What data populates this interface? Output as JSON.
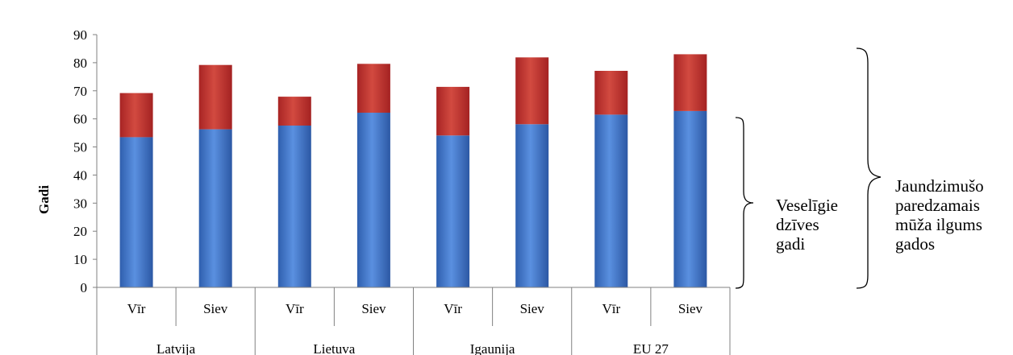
{
  "chart_data": {
    "type": "bar",
    "stacked": true,
    "title": "",
    "ylabel": "Gadi",
    "xlabel": "",
    "ylim": [
      0,
      90
    ],
    "yticks": [
      0,
      10,
      20,
      30,
      40,
      50,
      60,
      70,
      80,
      90
    ],
    "groups": [
      {
        "label": "Latvija",
        "categories": [
          "Vīr",
          "Siev"
        ]
      },
      {
        "label": "Lietuva",
        "categories": [
          "Vīr",
          "Siev"
        ]
      },
      {
        "label": "Igaunija",
        "categories": [
          "Vīr",
          "Siev"
        ]
      },
      {
        "label": "EU 27",
        "categories": [
          "Vīr",
          "Siev"
        ]
      }
    ],
    "categories": [
      "Vīr",
      "Siev",
      "Vīr",
      "Siev",
      "Vīr",
      "Siev",
      "Vīr",
      "Siev"
    ],
    "series": [
      {
        "values": [
          53.5,
          56.3,
          57.6,
          62.2,
          54.1,
          58.1,
          61.5,
          62.8
        ],
        "color": "#4a7fd0"
      },
      {
        "values": [
          15.7,
          22.9,
          10.3,
          17.4,
          17.3,
          23.8,
          15.6,
          20.2
        ],
        "color": "#c0392b"
      }
    ],
    "totals": [
      69.2,
      79.2,
      67.9,
      79.6,
      71.4,
      81.9,
      77.1,
      83.0
    ],
    "grid": false
  },
  "annotations": {
    "healthy_years": [
      "Veselīgie",
      "dzīves",
      "gadi"
    ],
    "life_expectancy": [
      "Jaundzimušo",
      "paredzamais",
      "mūža ilgums",
      "gados"
    ]
  }
}
